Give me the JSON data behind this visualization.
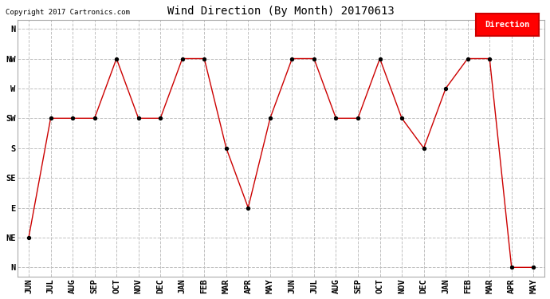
{
  "title": "Wind Direction (By Month) 20170613",
  "copyright": "Copyright 2017 Cartronics.com",
  "legend_label": "Direction",
  "legend_bg": "#ff0000",
  "legend_text_color": "#ffffff",
  "x_labels": [
    "JUN",
    "JUL",
    "AUG",
    "SEP",
    "OCT",
    "NOV",
    "DEC",
    "JAN",
    "FEB",
    "MAR",
    "APR",
    "MAY",
    "JUN",
    "JUL",
    "AUG",
    "SEP",
    "OCT",
    "NOV",
    "DEC",
    "JAN",
    "FEB",
    "MAR",
    "APR",
    "MAY"
  ],
  "y_tick_labels": [
    "N",
    "NW",
    "W",
    "SW",
    "S",
    "SE",
    "E",
    "NE",
    "N"
  ],
  "y_tick_positions": [
    8,
    7,
    6,
    5,
    4,
    3,
    2,
    1,
    0
  ],
  "data_values": [
    1,
    5,
    5,
    5,
    7,
    5,
    5,
    7,
    7,
    4,
    2,
    5,
    7,
    7,
    5,
    5,
    7,
    5,
    4,
    6,
    7,
    7,
    0,
    0
  ],
  "line_color": "#cc0000",
  "marker_color": "#000000",
  "grid_color": "#c0c0c0",
  "bg_color": "#ffffff",
  "title_fontsize": 10,
  "tick_fontsize": 7.5,
  "ylim_min": -0.3,
  "ylim_max": 8.3
}
